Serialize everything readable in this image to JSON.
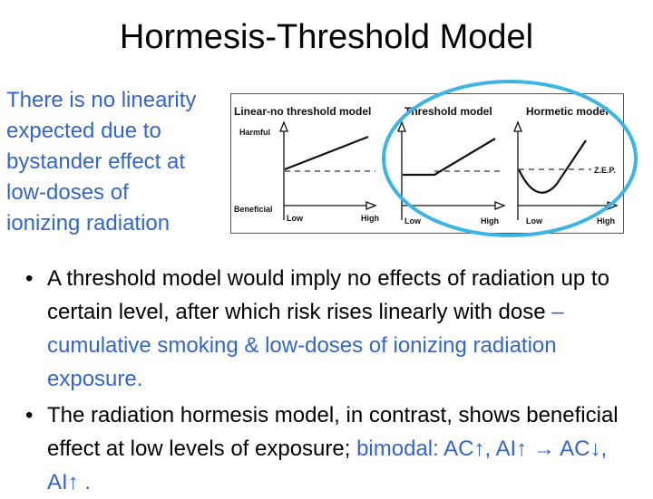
{
  "slide": {
    "title": "Hormesis-Threshold Model",
    "side_note_lines": [
      "There is no linearity",
      "expected due to",
      "bystander effect at",
      "low-doses of",
      "ionizing radiation"
    ]
  },
  "figure": {
    "panel_titles": [
      "Linear-no threshold model",
      "Threshold model",
      "Hormetic model"
    ],
    "y_labels": {
      "top": "Harmful",
      "bottom": "Beneficial"
    },
    "x_labels": [
      "Low",
      "High"
    ],
    "zep_label": "Z.E.P.",
    "highlight_color": "#3bb4e6"
  },
  "bullets": [
    {
      "text": "A threshold model would imply no effects of radiation up to certain level, after which risk rises linearly with dose",
      "emphasis": " – cumulative smoking & low-doses of ionizing radiation exposure."
    },
    {
      "text": "The radiation hormesis model, in contrast, shows beneficial effect at low levels of exposure; ",
      "emphasis": "bimodal: AC↑, AI↑  →  AC↓, AI↑ ."
    }
  ],
  "colors": {
    "text": "#000000",
    "accent_blue": "#3366cc"
  }
}
